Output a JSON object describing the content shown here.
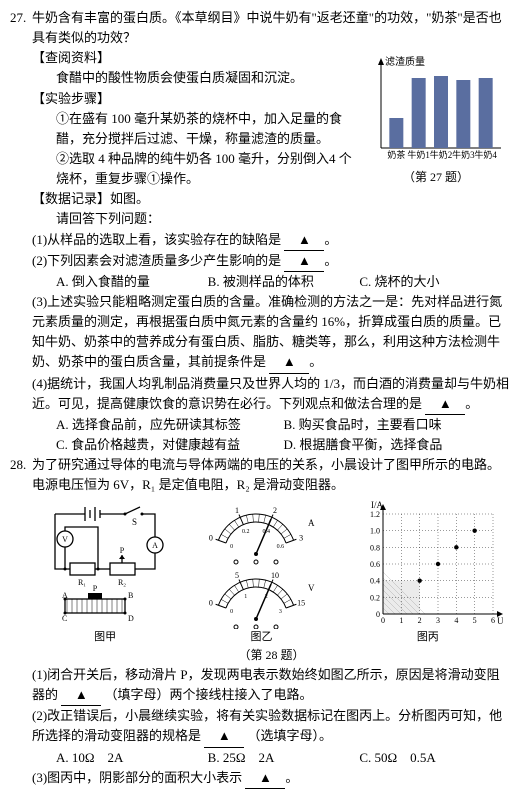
{
  "q27": {
    "number": "27.",
    "stem": "牛奶含有丰富的蛋白质。《本草纲目》中说牛奶有\"返老还童\"的功效，\"奶茶\"是否也具有类似的功效？",
    "sec_info_title": "【查阅资料】",
    "sec_info": "食醋中的酸性物质会使蛋白质凝固和沉淀。",
    "sec_steps_title": "【实验步骤】",
    "step1": "①在盛有 100 毫升某奶茶的烧杯中，加入足量的食醋，充分搅拌后过滤、干燥，称量滤渣的质量。",
    "step2": "②选取 4 种品牌的纯牛奶各 100 毫升，分别倒入4 个烧杯，重复步骤①操作。",
    "sec_data_title": "【数据记录】如图。",
    "answer_lead": "请回答下列问题：",
    "s1": "(1)从样品的选取上看，该实验存在的缺陷是",
    "s2_a": "(2)下列因素会对滤渣质量多少产生影响的是",
    "s2_opts": {
      "A": "A. 倒入食醋的量",
      "B": "B. 被测样品的体积",
      "C": "C. 烧杯的大小"
    },
    "s3_a": "(3)上述实验只能粗略测定蛋白质的含量。准确检测的方法之一是：先对样品进行氮元素质量的测定，再根据蛋白质中氮元素的含量约 16%，折算成蛋白质的质量。已知牛奶、奶茶中的营养成分有蛋白质、脂肪、糖类等，那么，利用这种方法检测牛奶、奶茶中的蛋白质含量，其前提条件是",
    "s4_a": "(4)据统计，我国人均乳制品消费量只及世界人均的 1/3，而白酒的消费量却与牛奶相近。可见，提高健康饮食的意识势在必行。下列观点和做法合理的是",
    "s4_opts": {
      "A": "A. 选择食品前，应先研读其标签",
      "B": "B. 购买食品时，主要看口味",
      "C": "C. 食品价格越贵，对健康越有益",
      "D": "D. 根据膳食平衡，选择食品"
    },
    "chart": {
      "ylabel": "滤渣质量",
      "categories": [
        "奶茶",
        "牛奶1",
        "牛奶2",
        "牛奶3",
        "牛奶4"
      ],
      "values": [
        30,
        70,
        72,
        68,
        70
      ],
      "bar_color": "#5a6ea0",
      "axis_color": "#000",
      "caption": "（第 27 题）"
    }
  },
  "q28": {
    "number": "28.",
    "stem": "为了研究通过导体的电流与导体两端的电压的关系，小晨设计了图甲所示的电路。电源电压恒为 6V，R₁ 是定值电阻，R₂ 是滑动变阻器。",
    "fig_labels": {
      "jia": "图甲",
      "yi": "图乙",
      "bing": "图丙",
      "caption": "（第 28 题）"
    },
    "s1": "(1)闭合开关后，移动滑片 P，发现两电表示数始终如图乙所示，原因是将滑动变阻器的",
    "s1_tail": "（填字母）两个接线柱接入了电路。",
    "s2_a": "(2)改正错误后，小晨继续实验，将有关实验数据标记在图丙上。分析图丙可知，他所选择的滑动变阻器的规格是",
    "s2_tail": "（选填字母）。",
    "s2_opts": {
      "A": "A. 10Ω　2A",
      "B": "B. 25Ω　2A",
      "C": "C. 50Ω　0.5A"
    },
    "s3_a": "(3)图丙中，阴影部分的面积大小表示",
    "circuit": {
      "stroke": "#000",
      "labels": {
        "V": "V",
        "A": "A",
        "S": "S",
        "R1": "R₁",
        "R2": "R₂",
        "P": "P"
      },
      "slider_labels": [
        "A",
        "B",
        "C",
        "D"
      ]
    },
    "meters": {
      "ammeter": {
        "min": 0,
        "max": 3,
        "ticks": [
          "0",
          "1",
          "2",
          "3"
        ],
        "small": [
          "0",
          "0.2",
          "0.4",
          "0.6"
        ],
        "pointer_value": 0.4,
        "unit": "A"
      },
      "voltmeter": {
        "min": 0,
        "max": 15,
        "ticks": [
          "0",
          "5",
          "10",
          "15"
        ],
        "small": [
          "0",
          "1",
          "2",
          "3"
        ],
        "pointer_value": 2,
        "unit": "V"
      }
    },
    "graph": {
      "xlabel": "U/V",
      "ylabel": "I/A",
      "xlim": [
        0,
        6
      ],
      "ylim": [
        0,
        1.2
      ],
      "xticks": [
        0,
        1,
        2,
        3,
        4,
        5,
        6
      ],
      "yticks": [
        0,
        0.2,
        0.4,
        0.6,
        0.8,
        1.0,
        1.2
      ],
      "points": [
        [
          2,
          0.4
        ],
        [
          3,
          0.6
        ],
        [
          4,
          0.8
        ],
        [
          5,
          1.0
        ]
      ],
      "shade": {
        "x": [
          0,
          2
        ],
        "ytop": 0.4
      },
      "grid_color": "#000",
      "point_color": "#000"
    }
  },
  "triangle": "▲"
}
